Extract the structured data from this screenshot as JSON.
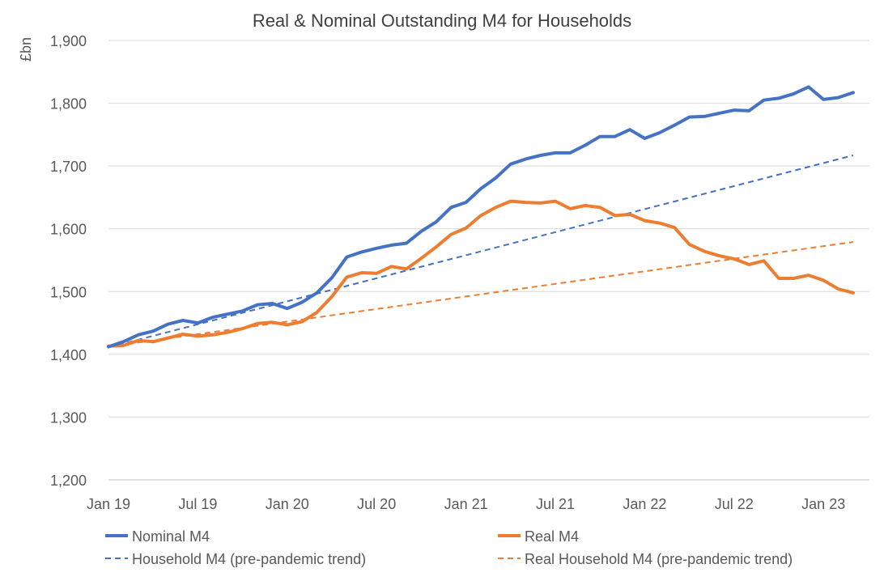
{
  "chart_data": {
    "type": "line",
    "title": "Real & Nominal Outstanding M4 for Households",
    "ylabel": "£bn",
    "xlabel": "",
    "ylim": [
      1200,
      1900
    ],
    "yticks": [
      "1,200",
      "1,300",
      "1,400",
      "1,500",
      "1,600",
      "1,700",
      "1,800",
      "1,900"
    ],
    "ytick_values": [
      1200,
      1300,
      1400,
      1500,
      1600,
      1700,
      1800,
      1900
    ],
    "xtick_labels": [
      "Jan 19",
      "Jul 19",
      "Jan 20",
      "Jul 20",
      "Jan 21",
      "Jul 21",
      "Jan 22",
      "Jul 22",
      "Jan 23"
    ],
    "xtick_months": [
      0,
      6,
      12,
      18,
      24,
      30,
      36,
      42,
      48
    ],
    "x_start": "Jan 2019",
    "x_end": "Apr 2023",
    "grid": true,
    "legend_position": "bottom",
    "series": [
      {
        "name": "Nominal M4",
        "color": "#4472C4",
        "style": "solid",
        "values": [
          1412,
          1420,
          1431,
          1437,
          1448,
          1454,
          1450,
          1459,
          1464,
          1469,
          1479,
          1481,
          1473,
          1483,
          1498,
          1522,
          1555,
          1563,
          1569,
          1574,
          1577,
          1596,
          1611,
          1634,
          1642,
          1664,
          1681,
          1703,
          1711,
          1717,
          1721,
          1721,
          1733,
          1747,
          1747,
          1758,
          1744,
          1753,
          1765,
          1778,
          1779,
          1784,
          1789,
          1788,
          1805,
          1808,
          1815,
          1826,
          1806,
          1809,
          1817
        ]
      },
      {
        "name": "Real M4",
        "color": "#ED7D31",
        "style": "solid",
        "values": [
          1413,
          1414,
          1422,
          1420,
          1426,
          1432,
          1429,
          1431,
          1435,
          1441,
          1449,
          1451,
          1447,
          1452,
          1467,
          1492,
          1523,
          1530,
          1529,
          1540,
          1536,
          1553,
          1571,
          1591,
          1601,
          1621,
          1634,
          1644,
          1642,
          1641,
          1644,
          1632,
          1637,
          1634,
          1621,
          1623,
          1613,
          1609,
          1602,
          1575,
          1564,
          1557,
          1552,
          1543,
          1549,
          1521,
          1521,
          1526,
          1518,
          1504,
          1498
        ]
      },
      {
        "name": "Household M4 (pre-pandemic trend)",
        "color": "#4472C4",
        "style": "dashed",
        "values": [
          1411,
          1717
        ]
      },
      {
        "name": "Real Household M4 (pre-pandemic trend)",
        "color": "#ED7D31",
        "style": "dashed",
        "values": [
          1412,
          1579
        ]
      }
    ]
  }
}
